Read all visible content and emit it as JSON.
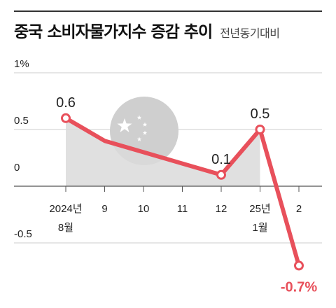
{
  "header": {
    "title": "중국 소비자물가지수 증감 추이",
    "subtitle": "전년동기대비"
  },
  "colors": {
    "line": "#e8505b",
    "area": "#dadada",
    "flag_circle": "#cfcfcf",
    "grid": "#cccccc",
    "baseline": "#555555"
  },
  "icons": {
    "flag": "china-flag-icon"
  },
  "chart_data": {
    "type": "line",
    "y_tick_labels": [
      "1%",
      "0.5",
      "0",
      "-0.5"
    ],
    "y_ticks": [
      1,
      0.5,
      0,
      -0.5
    ],
    "ylim": [
      -0.7,
      1
    ],
    "x_tick_labels": [
      [
        "2024년",
        "8월"
      ],
      [
        "9"
      ],
      [
        "10"
      ],
      [
        "11"
      ],
      [
        "12"
      ],
      [
        "25년",
        "1월"
      ],
      [
        "2"
      ]
    ],
    "series": [
      {
        "values": [
          0.6,
          0.4,
          null,
          null,
          0.1,
          0.5,
          -0.7
        ],
        "points": [
          {
            "x": 0,
            "y": 0.6,
            "label": "0.6"
          },
          {
            "x": 1,
            "y": 0.4,
            "label": ""
          },
          {
            "x": 4,
            "y": 0.1,
            "label": "0.1"
          },
          {
            "x": 5,
            "y": 0.5,
            "label": "0.5"
          },
          {
            "x": 6,
            "y": -0.7,
            "label": "-0.7%"
          }
        ]
      }
    ],
    "grid": true
  }
}
